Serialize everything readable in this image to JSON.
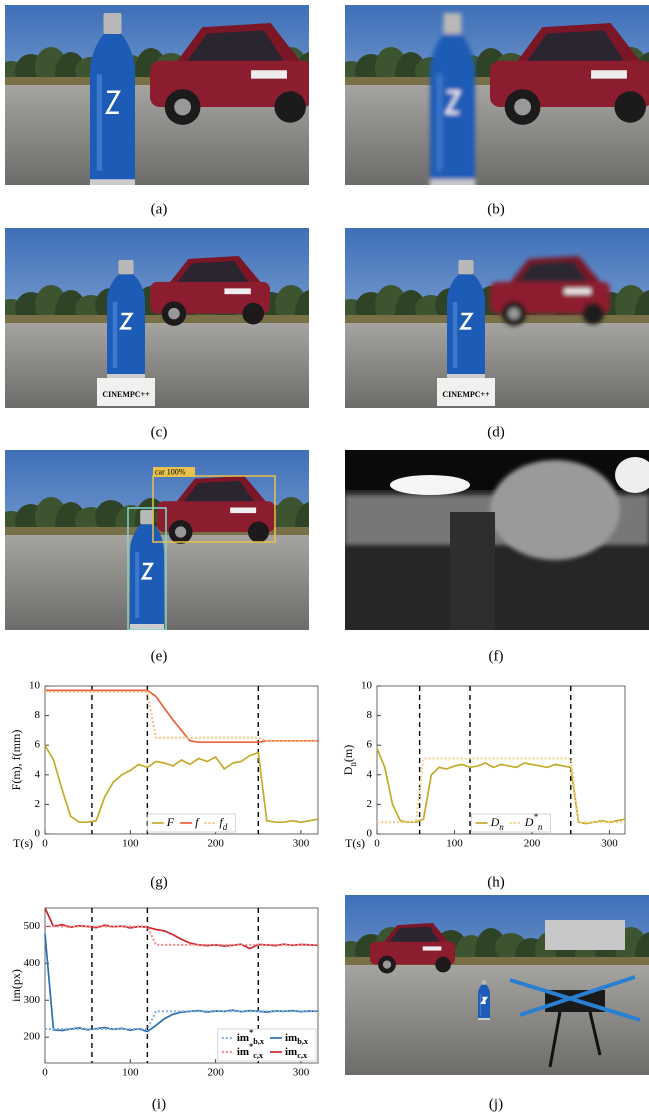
{
  "captions": [
    "(a)",
    "(b)",
    "(c)",
    "(d)",
    "(e)",
    "(f)",
    "(g)",
    "(h)",
    "(i)",
    "(j)"
  ],
  "photo_text": {
    "box_c": "CINEMPC++",
    "box_d": "CINEMPC++",
    "detection_e": "car 100%"
  },
  "chart_data": [
    {
      "type": "line",
      "xlabel": "T(s)",
      "ylabel": "F(m), f(mm)",
      "xlim": [
        0,
        320
      ],
      "ylim": [
        0,
        10
      ],
      "xticks": [
        0,
        100,
        200,
        300
      ],
      "yticks": [
        0,
        2,
        4,
        6,
        8,
        10
      ],
      "vlines": [
        55,
        120,
        250
      ],
      "legend": "bottom-center",
      "legend_columns": 3,
      "x": [
        0,
        10,
        20,
        30,
        40,
        50,
        60,
        70,
        80,
        90,
        100,
        110,
        120,
        130,
        140,
        150,
        160,
        170,
        180,
        190,
        200,
        210,
        220,
        230,
        240,
        250,
        260,
        270,
        280,
        290,
        300,
        310,
        320
      ],
      "series": [
        {
          "name": "F",
          "color": "#c4aa2a",
          "style": "solid",
          "values": [
            6.0,
            5.0,
            3.0,
            1.2,
            0.8,
            0.8,
            0.9,
            2.5,
            3.5,
            4.0,
            4.3,
            4.7,
            4.5,
            4.9,
            4.8,
            4.6,
            5.0,
            4.7,
            5.1,
            4.9,
            5.2,
            4.4,
            4.8,
            4.9,
            5.3,
            5.5,
            0.9,
            0.8,
            0.8,
            0.9,
            0.8,
            0.9,
            1.0
          ]
        },
        {
          "name": "f",
          "color": "#f0603c",
          "style": "solid",
          "values": [
            9.7,
            9.7,
            9.7,
            9.7,
            9.7,
            9.7,
            9.7,
            9.7,
            9.7,
            9.7,
            9.7,
            9.7,
            9.7,
            9.3,
            8.5,
            7.7,
            7.0,
            6.3,
            6.2,
            6.2,
            6.2,
            6.2,
            6.2,
            6.2,
            6.2,
            6.2,
            6.3,
            6.3,
            6.3,
            6.3,
            6.3,
            6.3,
            6.3
          ]
        },
        {
          "name": "f_{d}",
          "color": "#f3c27c",
          "style": "dotted",
          "values": [
            9.6,
            9.6,
            9.6,
            9.6,
            9.6,
            9.6,
            9.6,
            9.6,
            9.6,
            9.6,
            9.6,
            9.6,
            9.6,
            6.5,
            6.5,
            6.5,
            6.5,
            6.5,
            6.5,
            6.5,
            6.5,
            6.5,
            6.5,
            6.5,
            6.5,
            6.5,
            6.3,
            6.3,
            6.3,
            6.3,
            6.3,
            6.3,
            6.3
          ]
        }
      ]
    },
    {
      "type": "line",
      "xlabel": "T(s)",
      "ylabel": "D_{n}(m)",
      "xlim": [
        0,
        320
      ],
      "ylim": [
        0,
        10
      ],
      "xticks": [
        0,
        100,
        200,
        300
      ],
      "yticks": [
        0,
        2,
        4,
        6,
        8,
        10
      ],
      "vlines": [
        55,
        120,
        250
      ],
      "legend": "bottom-center",
      "legend_columns": 2,
      "x": [
        0,
        10,
        20,
        30,
        40,
        50,
        60,
        70,
        80,
        90,
        100,
        110,
        120,
        130,
        140,
        150,
        160,
        170,
        180,
        190,
        200,
        210,
        220,
        230,
        240,
        250,
        260,
        270,
        280,
        290,
        300,
        310,
        320
      ],
      "series": [
        {
          "name": "D_{n}",
          "color": "#c4aa2a",
          "style": "solid",
          "values": [
            5.8,
            4.5,
            2.0,
            0.9,
            0.8,
            0.8,
            1.0,
            4.0,
            4.5,
            4.4,
            4.6,
            4.7,
            4.5,
            4.6,
            4.8,
            4.5,
            4.7,
            4.6,
            4.5,
            4.8,
            4.7,
            4.6,
            4.5,
            4.7,
            4.6,
            4.5,
            0.8,
            0.7,
            0.8,
            0.9,
            0.8,
            0.9,
            1.0
          ]
        },
        {
          "name": "D^{*}_{n}",
          "color": "#f3d08a",
          "style": "dotted",
          "values": [
            0.8,
            0.8,
            0.8,
            0.8,
            0.8,
            0.8,
            5.1,
            5.1,
            5.1,
            5.1,
            5.1,
            5.1,
            5.1,
            5.1,
            5.1,
            5.1,
            5.1,
            5.1,
            5.1,
            5.1,
            5.1,
            5.1,
            5.1,
            5.1,
            5.1,
            5.1,
            0.8,
            0.8,
            0.8,
            0.8,
            0.8,
            0.8,
            0.8
          ]
        }
      ]
    },
    {
      "type": "line",
      "ylabel": "im(px)",
      "xlim": [
        0,
        320
      ],
      "ylim": [
        130,
        550
      ],
      "xticks": [
        0,
        100,
        200,
        300
      ],
      "yticks": [
        200,
        300,
        400,
        500
      ],
      "vlines": [
        55,
        120,
        250
      ],
      "legend": "bottom-right",
      "legend_columns": 2,
      "x": [
        0,
        10,
        20,
        30,
        40,
        50,
        60,
        70,
        80,
        90,
        100,
        110,
        120,
        130,
        140,
        150,
        160,
        170,
        180,
        190,
        200,
        210,
        220,
        230,
        240,
        250,
        260,
        270,
        280,
        290,
        300,
        310,
        320
      ],
      "series": [
        {
          "name": "im^{*}_{b,x}",
          "color": "#7fb0e0",
          "style": "dotted",
          "values": [
            222,
            222,
            222,
            222,
            222,
            222,
            222,
            222,
            222,
            222,
            222,
            222,
            222,
            270,
            270,
            270,
            270,
            270,
            270,
            270,
            270,
            270,
            270,
            270,
            270,
            270,
            270,
            270,
            270,
            270,
            270,
            270,
            270
          ]
        },
        {
          "name": "im_{b,x}",
          "color": "#2a6fb0",
          "style": "solid",
          "values": [
            480,
            220,
            218,
            222,
            225,
            220,
            223,
            226,
            221,
            224,
            219,
            223,
            215,
            232,
            250,
            262,
            268,
            270,
            272,
            268,
            271,
            270,
            273,
            269,
            272,
            270,
            268,
            271,
            270,
            272,
            269,
            271,
            270
          ]
        },
        {
          "name": "im^{*}_{c,x}",
          "color": "#f08a8a",
          "style": "dotted",
          "values": [
            500,
            500,
            500,
            500,
            500,
            500,
            500,
            500,
            500,
            500,
            500,
            500,
            500,
            450,
            450,
            450,
            450,
            450,
            450,
            450,
            450,
            450,
            450,
            450,
            450,
            450,
            450,
            450,
            450,
            450,
            450,
            450,
            450
          ]
        },
        {
          "name": "im_{c,x}",
          "color": "#c8242a",
          "style": "solid",
          "values": [
            550,
            500,
            505,
            498,
            502,
            500,
            497,
            503,
            499,
            501,
            496,
            500,
            498,
            492,
            488,
            478,
            465,
            455,
            450,
            448,
            450,
            447,
            449,
            452,
            440,
            451,
            450,
            448,
            452,
            449,
            451,
            450,
            449
          ]
        }
      ]
    }
  ]
}
